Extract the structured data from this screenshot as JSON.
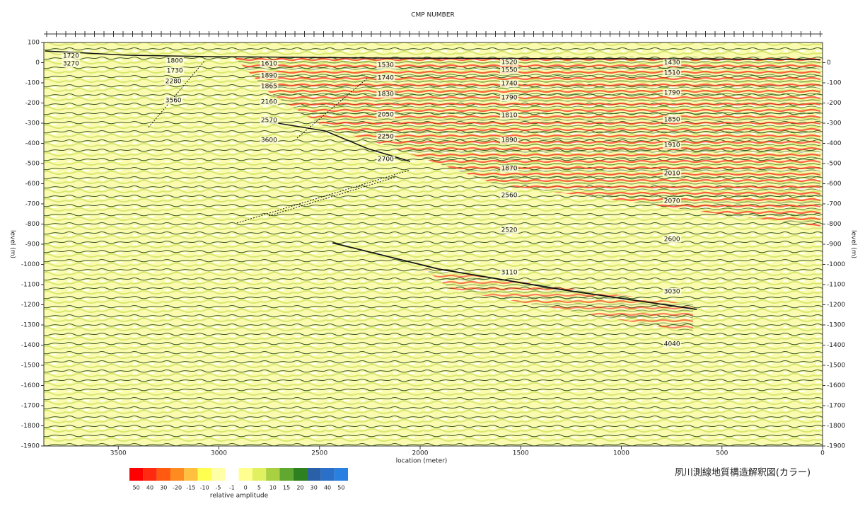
{
  "chart_data": {
    "type": "section",
    "top_label": "CMP NUMBER",
    "x_label": "location (meter)",
    "y_label": "level (m)",
    "y2_label": "level (m)",
    "title": "夙川測線地質構造解釈図(カラー)",
    "xlim": [
      3870,
      0
    ],
    "xticks": [
      3500,
      3000,
      2500,
      2000,
      1500,
      1000,
      500,
      0
    ],
    "ylim": [
      -1900,
      100
    ],
    "yticks": [
      100,
      0,
      -100,
      -200,
      -300,
      -400,
      -500,
      -600,
      -700,
      -800,
      -900,
      -1000,
      -1100,
      -1200,
      -1300,
      -1400,
      -1500,
      -1600,
      -1700,
      -1800,
      -1900
    ],
    "y2lim": [
      -1900,
      100
    ],
    "y2ticks": [
      0,
      -100,
      -200,
      -300,
      -400,
      -500,
      -600,
      -700,
      -800,
      -900,
      -1000,
      -1100,
      -1200,
      -1300,
      -1400,
      -1500,
      -1600,
      -1700,
      -1800,
      -1900
    ],
    "annotations": [
      {
        "text": "1720",
        "x": 3735,
        "y": 33
      },
      {
        "text": "3270",
        "x": 3735,
        "y": -5
      },
      {
        "text": "1800",
        "x": 3219,
        "y": 9
      },
      {
        "text": "1730",
        "x": 3219,
        "y": -40
      },
      {
        "text": "2280",
        "x": 3226,
        "y": -93
      },
      {
        "text": "3560",
        "x": 3226,
        "y": -188
      },
      {
        "text": "1610",
        "x": 2751,
        "y": -5
      },
      {
        "text": "1890",
        "x": 2751,
        "y": -65
      },
      {
        "text": "1865",
        "x": 2751,
        "y": -118
      },
      {
        "text": "2160",
        "x": 2751,
        "y": -195
      },
      {
        "text": "2570",
        "x": 2751,
        "y": -286
      },
      {
        "text": "3600",
        "x": 2751,
        "y": -384
      },
      {
        "text": "1530",
        "x": 2171,
        "y": -12
      },
      {
        "text": "1740",
        "x": 2171,
        "y": -75
      },
      {
        "text": "1830",
        "x": 2171,
        "y": -156
      },
      {
        "text": "2050",
        "x": 2171,
        "y": -258
      },
      {
        "text": "2250",
        "x": 2171,
        "y": -367
      },
      {
        "text": "2700",
        "x": 2171,
        "y": -479
      },
      {
        "text": "1520",
        "x": 1557,
        "y": 2
      },
      {
        "text": "1550",
        "x": 1557,
        "y": -37
      },
      {
        "text": "1740",
        "x": 1557,
        "y": -104
      },
      {
        "text": "1790",
        "x": 1557,
        "y": -174
      },
      {
        "text": "1810",
        "x": 1557,
        "y": -261
      },
      {
        "text": "1890",
        "x": 1557,
        "y": -384
      },
      {
        "text": "1870",
        "x": 1557,
        "y": -525
      },
      {
        "text": "2560",
        "x": 1557,
        "y": -658
      },
      {
        "text": "2520",
        "x": 1557,
        "y": -830
      },
      {
        "text": "3110",
        "x": 1557,
        "y": -1040
      },
      {
        "text": "1430",
        "x": 748,
        "y": 0
      },
      {
        "text": "1510",
        "x": 748,
        "y": -51
      },
      {
        "text": "1790",
        "x": 748,
        "y": -149
      },
      {
        "text": "1850",
        "x": 748,
        "y": -282
      },
      {
        "text": "1910",
        "x": 748,
        "y": -409
      },
      {
        "text": "2010",
        "x": 748,
        "y": -549
      },
      {
        "text": "2070",
        "x": 748,
        "y": -686
      },
      {
        "text": "2600",
        "x": 748,
        "y": -875
      },
      {
        "text": "3030",
        "x": 748,
        "y": -1135
      },
      {
        "text": "4040",
        "x": 748,
        "y": -1395
      }
    ],
    "scale": {
      "label": "relative amplitude",
      "values": [
        50,
        40,
        30,
        -20,
        -15,
        -10,
        -5,
        -1,
        0,
        5,
        10,
        15,
        20,
        30,
        40,
        50
      ],
      "colors": [
        "#ff0000",
        "#ff2a10",
        "#ff5a10",
        "#ff8a20",
        "#ffc040",
        "#ffff50",
        "#ffffa8",
        "#ffffff",
        "#ffff90",
        "#e0f060",
        "#a8d040",
        "#60a830",
        "#2e8020",
        "#2a60a8",
        "#2a70c8",
        "#2a80e0"
      ]
    }
  }
}
